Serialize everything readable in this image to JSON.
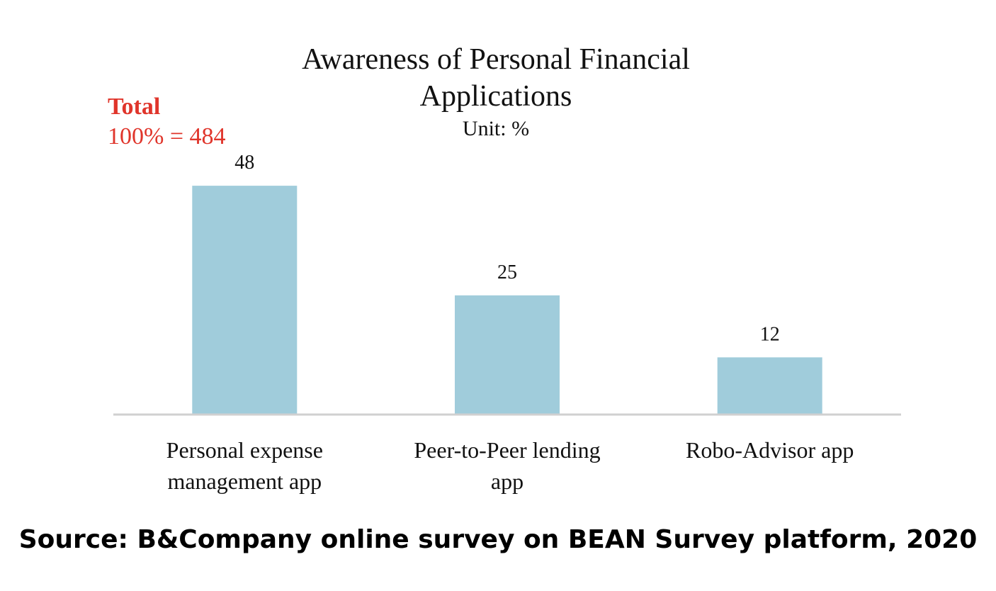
{
  "chart_data": {
    "type": "bar",
    "title_lines": [
      "Awareness of Personal Financial",
      "Applications"
    ],
    "subtitle": "Unit: %",
    "categories": [
      [
        "Personal expense",
        "management app"
      ],
      [
        "Peer-to-Peer lending",
        "app"
      ],
      [
        "Robo-Advisor app"
      ]
    ],
    "values": [
      48,
      25,
      12
    ],
    "value_labels": [
      "48",
      "25",
      "12"
    ],
    "ylim": [
      0,
      55
    ],
    "xlabel": "",
    "ylabel": "",
    "grid": false,
    "legend": "none",
    "colors": {
      "bar": "#a0ccdb",
      "axis": "#d0d0d0",
      "note": "#e0352b"
    }
  },
  "note": {
    "label": "Total",
    "value": "100% = 484"
  },
  "source": "Source: B&Company online survey on BEAN Survey platform, 2020"
}
